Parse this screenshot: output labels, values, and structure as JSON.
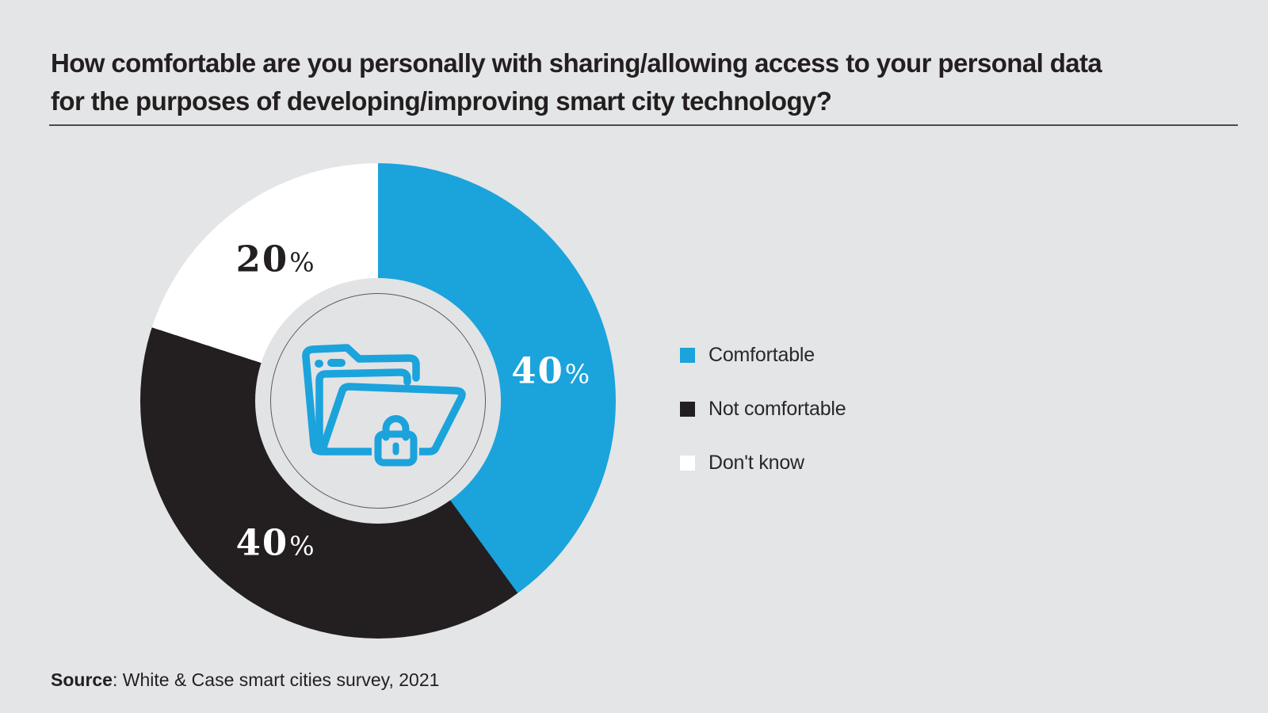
{
  "page": {
    "background": "#e4e5e7"
  },
  "header": {
    "title_line1": "How comfortable are you personally with sharing/allowing access to your personal data",
    "title_line2": "for the purposes of developing/improving smart city technology?"
  },
  "chart_data": {
    "type": "pie",
    "donut": true,
    "title": "How comfortable are you personally with sharing/allowing access to your personal data for the purposes of developing/improving smart city technology?",
    "categories": [
      "Comfortable",
      "Not comfortable",
      "Don't know"
    ],
    "values": [
      40,
      40,
      20
    ],
    "unit": "%",
    "colors": [
      "#1ba3dc",
      "#231f20",
      "#ffffff"
    ],
    "label_colors": [
      "#ffffff",
      "#ffffff",
      "#231f20"
    ],
    "label_angle_deg": [
      80,
      216,
      324
    ],
    "start_angle_deg": 0,
    "direction": "clockwise",
    "legend_position": "right",
    "center_icon": "folder-lock-icon",
    "source": "White & Case smart cities survey, 2021"
  },
  "legend": {
    "items": [
      {
        "label": "Comfortable",
        "color": "#1ba3dc"
      },
      {
        "label": "Not comfortable",
        "color": "#231f20"
      },
      {
        "label": "Don't know",
        "color": "#ffffff"
      }
    ]
  },
  "footer": {
    "source_label": "Source",
    "source_rest": ": White & Case smart cities survey, 2021"
  }
}
